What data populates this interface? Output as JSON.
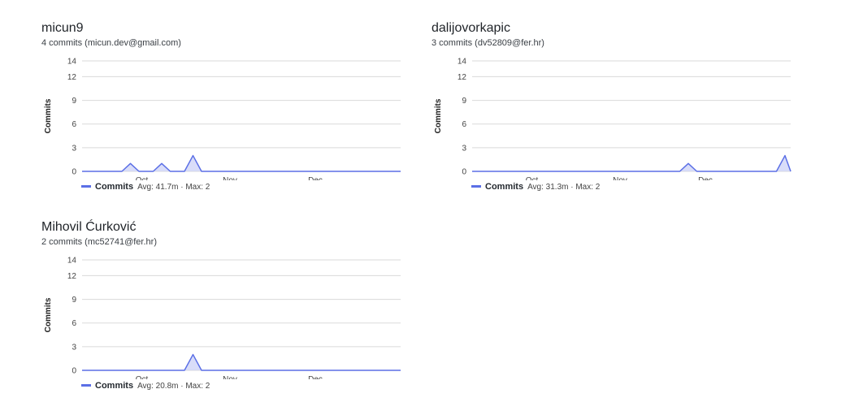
{
  "colors": {
    "line": "#5b6fe6",
    "fill": "#c9cff7",
    "grid": "#dadada",
    "axis_text": "#444444"
  },
  "contributors": [
    {
      "name": "micun9",
      "subtitle": "4 commits (micun.dev@gmail.com)",
      "legend": {
        "series": "Commits",
        "stats": "Avg: 41.7m · Max: 2"
      },
      "chart_data": {
        "type": "area",
        "ylabel": "Commits",
        "ylim": [
          0,
          14
        ],
        "yticks": [
          0,
          3,
          6,
          9,
          12,
          14
        ],
        "xlim": [
          "2023-09-10",
          "2023-12-31"
        ],
        "xticks": [
          {
            "label": "Oct",
            "date": "2023-10-01"
          },
          {
            "label": "Nov",
            "date": "2023-11-01"
          },
          {
            "label": "Dec",
            "date": "2023-12-01"
          }
        ],
        "points": [
          {
            "date": "2023-09-10",
            "commits": 0
          },
          {
            "date": "2023-09-24",
            "commits": 0
          },
          {
            "date": "2023-09-27",
            "commits": 1
          },
          {
            "date": "2023-09-30",
            "commits": 0
          },
          {
            "date": "2023-10-05",
            "commits": 0
          },
          {
            "date": "2023-10-08",
            "commits": 1
          },
          {
            "date": "2023-10-11",
            "commits": 0
          },
          {
            "date": "2023-10-16",
            "commits": 0
          },
          {
            "date": "2023-10-19",
            "commits": 2
          },
          {
            "date": "2023-10-22",
            "commits": 0
          },
          {
            "date": "2023-12-31",
            "commits": 0
          }
        ]
      }
    },
    {
      "name": "dalijovorkapic",
      "subtitle": "3 commits (dv52809@fer.hr)",
      "legend": {
        "series": "Commits",
        "stats": "Avg: 31.3m · Max: 2"
      },
      "chart_data": {
        "type": "area",
        "ylabel": "Commits",
        "ylim": [
          0,
          14
        ],
        "yticks": [
          0,
          3,
          6,
          9,
          12,
          14
        ],
        "xlim": [
          "2023-09-10",
          "2023-12-31"
        ],
        "xticks": [
          {
            "label": "Oct",
            "date": "2023-10-01"
          },
          {
            "label": "Nov",
            "date": "2023-11-01"
          },
          {
            "label": "Dec",
            "date": "2023-12-01"
          }
        ],
        "points": [
          {
            "date": "2023-09-10",
            "commits": 0
          },
          {
            "date": "2023-11-22",
            "commits": 0
          },
          {
            "date": "2023-11-25",
            "commits": 1
          },
          {
            "date": "2023-11-28",
            "commits": 0
          },
          {
            "date": "2023-12-26",
            "commits": 0
          },
          {
            "date": "2023-12-29",
            "commits": 2
          },
          {
            "date": "2023-12-31",
            "commits": 0
          }
        ]
      }
    },
    {
      "name": "Mihovil Ćurković",
      "subtitle": "2 commits (mc52741@fer.hr)",
      "legend": {
        "series": "Commits",
        "stats": "Avg: 20.8m · Max: 2"
      },
      "chart_data": {
        "type": "area",
        "ylabel": "Commits",
        "ylim": [
          0,
          14
        ],
        "yticks": [
          0,
          3,
          6,
          9,
          12,
          14
        ],
        "xlim": [
          "2023-09-10",
          "2023-12-31"
        ],
        "xticks": [
          {
            "label": "Oct",
            "date": "2023-10-01"
          },
          {
            "label": "Nov",
            "date": "2023-11-01"
          },
          {
            "label": "Dec",
            "date": "2023-12-01"
          }
        ],
        "points": [
          {
            "date": "2023-09-10",
            "commits": 0
          },
          {
            "date": "2023-10-16",
            "commits": 0
          },
          {
            "date": "2023-10-19",
            "commits": 2
          },
          {
            "date": "2023-10-22",
            "commits": 0
          },
          {
            "date": "2023-12-31",
            "commits": 0
          }
        ]
      }
    }
  ]
}
